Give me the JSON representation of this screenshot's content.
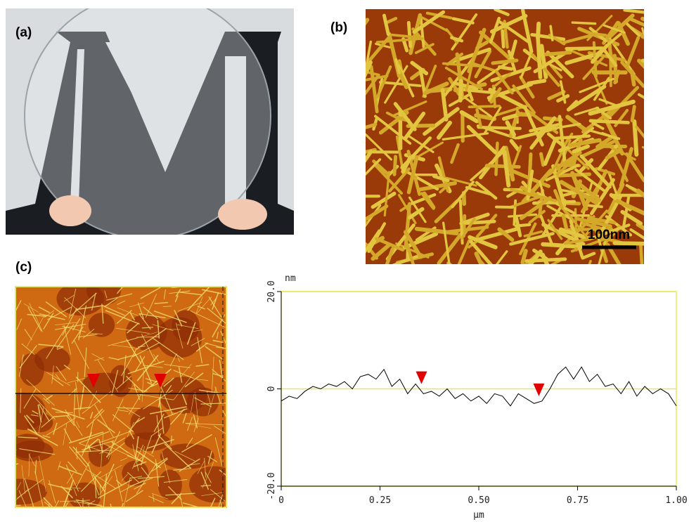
{
  "panels": {
    "a": "(a)",
    "b": "(b)",
    "c": "(c)"
  },
  "scale_bar": "100nm",
  "chart_data": {
    "type": "line",
    "y_label": "nm",
    "x_label": "μm",
    "x": [
      0,
      0.02,
      0.04,
      0.06,
      0.08,
      0.1,
      0.12,
      0.14,
      0.16,
      0.18,
      0.2,
      0.22,
      0.24,
      0.26,
      0.28,
      0.3,
      0.32,
      0.34,
      0.36,
      0.38,
      0.4,
      0.42,
      0.44,
      0.46,
      0.48,
      0.5,
      0.52,
      0.54,
      0.56,
      0.58,
      0.6,
      0.62,
      0.64,
      0.66,
      0.68,
      0.7,
      0.72,
      0.74,
      0.76,
      0.78,
      0.8,
      0.82,
      0.84,
      0.86,
      0.88,
      0.9,
      0.92,
      0.94,
      0.96,
      0.98,
      1
    ],
    "series": [
      {
        "color": "#000000",
        "values": [
          -2.5,
          -1.5,
          -2,
          -0.5,
          0.5,
          0,
          1,
          0.5,
          1.5,
          0,
          2.5,
          3,
          2,
          4,
          0.5,
          2,
          -1,
          1,
          -1,
          -0.5,
          -1.5,
          0,
          -2,
          -1,
          -2.5,
          -1.5,
          -3,
          -1,
          -1.5,
          -3.5,
          -1,
          -2,
          -3,
          -2.5,
          0,
          3,
          4.5,
          2,
          4.5,
          1.5,
          3,
          0.5,
          1,
          -1,
          1.5,
          -1.5,
          0.5,
          -1,
          0,
          -1,
          -3.5
        ]
      }
    ],
    "markers": {
      "color": "#e00000",
      "x": [
        0.355,
        0.652
      ],
      "values": [
        1,
        -1.5
      ]
    },
    "xlim": [
      0,
      1
    ],
    "ylim": [
      -20,
      20
    ],
    "xticks": [
      0,
      0.25,
      {
        "value": 0.5,
        "label": "0.50"
      },
      0.75,
      {
        "value": 1,
        "label": "1.00"
      }
    ],
    "yticks": [
      {
        "value": 20,
        "label": "20.0"
      },
      0,
      {
        "value": -20,
        "label": "-20.0"
      }
    ],
    "grid": true,
    "grid_color": "#e8e860"
  }
}
